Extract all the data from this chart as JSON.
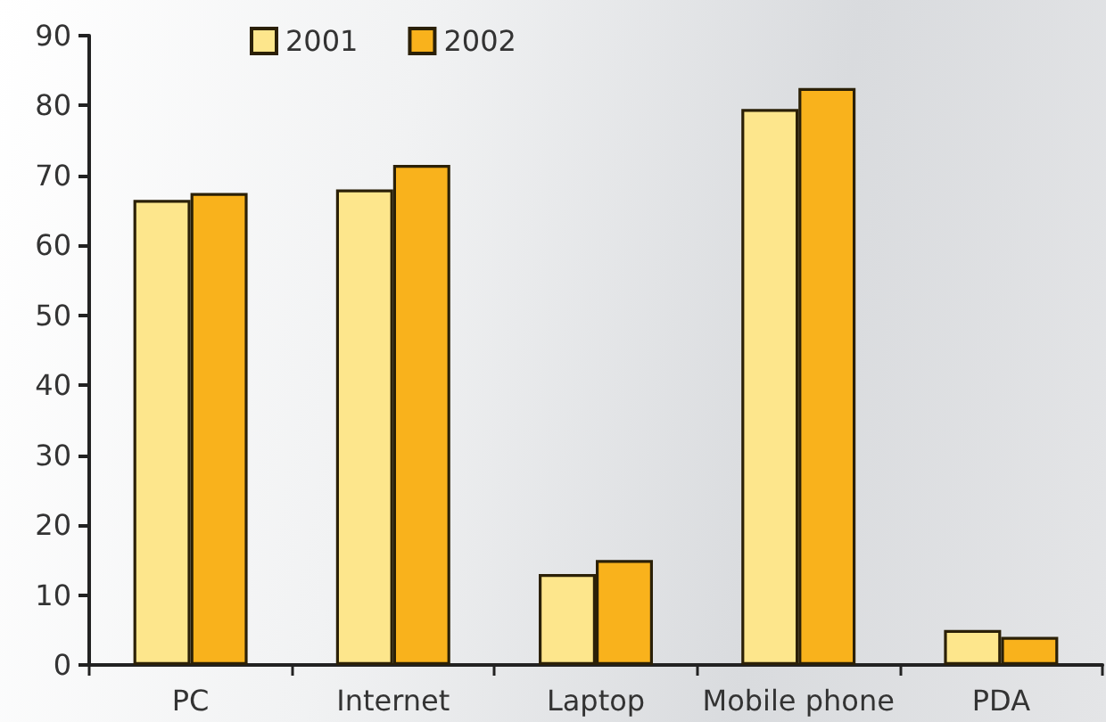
{
  "chart_data": {
    "type": "bar",
    "categories": [
      "PC",
      "Internet",
      "Laptop",
      "Mobile phone",
      "PDA"
    ],
    "series": [
      {
        "name": "2001",
        "color": "#fde68c",
        "values": [
          66.5,
          68,
          13,
          79.5,
          5
        ]
      },
      {
        "name": "2002",
        "color": "#f9b21c",
        "values": [
          67.5,
          71.5,
          15,
          82.5,
          4
        ]
      }
    ],
    "ylim": [
      0,
      90
    ],
    "yticks": [
      0,
      10,
      20,
      30,
      40,
      50,
      60,
      70,
      80,
      90
    ],
    "grid": false,
    "legend": "top"
  }
}
